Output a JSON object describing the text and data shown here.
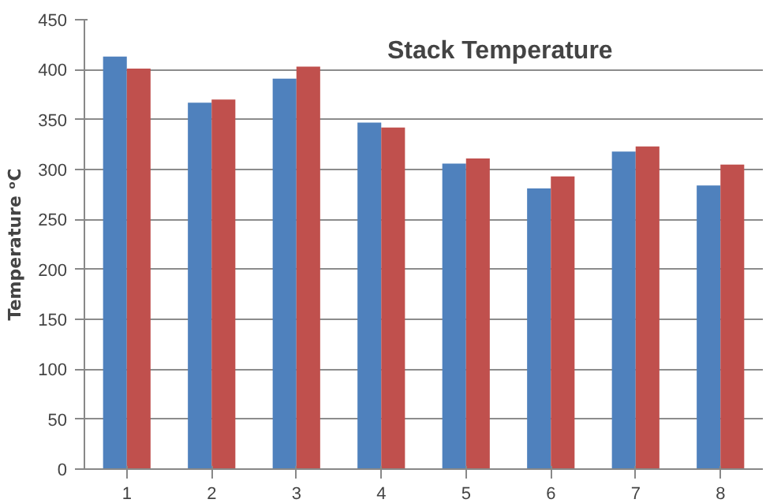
{
  "chart_data": {
    "type": "bar",
    "title": "Stack Temperature",
    "ylabel": "Temperature ᵒC",
    "categories": [
      "1",
      "2",
      "3",
      "4",
      "5",
      "6",
      "7",
      "8"
    ],
    "series": [
      {
        "color": "#4f81bd",
        "values": [
          413,
          367,
          391,
          347,
          306,
          281,
          318,
          284
        ]
      },
      {
        "color": "#c0504d",
        "values": [
          401,
          370,
          403,
          342,
          311,
          293,
          323,
          305
        ]
      }
    ],
    "ylim": [
      0,
      450
    ],
    "yticks": [
      0,
      50,
      100,
      150,
      200,
      250,
      300,
      350,
      400,
      450
    ],
    "grid": "y"
  }
}
